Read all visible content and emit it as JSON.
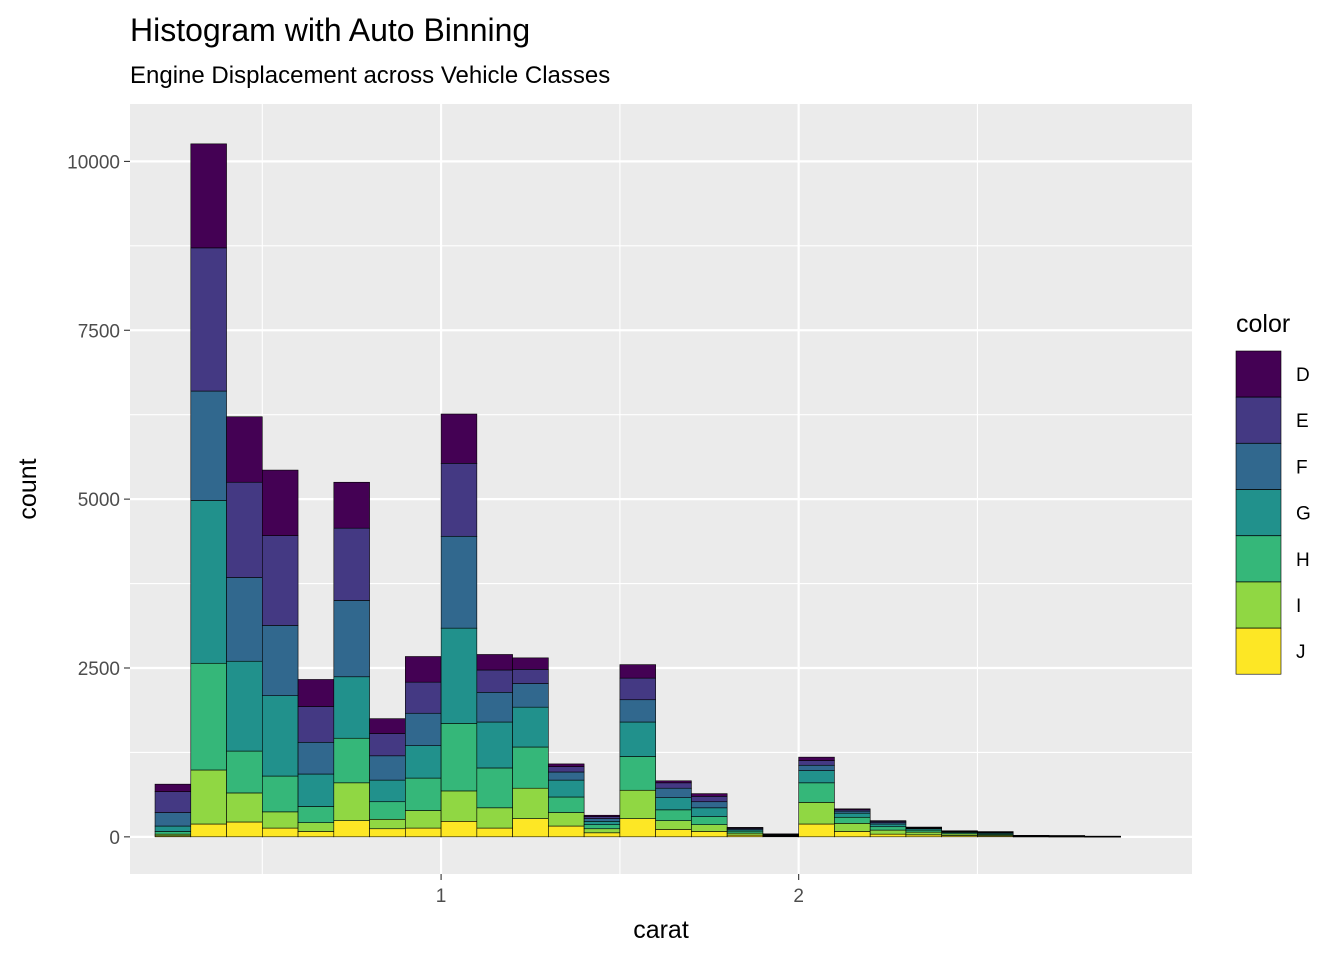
{
  "chart_data": {
    "type": "bar",
    "stacked": true,
    "title": "Histogram with Auto Binning",
    "subtitle": "Engine Displacement across Vehicle Classes",
    "xlabel": "carat",
    "ylabel": "count",
    "xlim": [
      0.13,
      3.1
    ],
    "ylim": [
      -550,
      10850
    ],
    "x_ticks": [
      {
        "value": 1,
        "label": "1"
      },
      {
        "value": 2,
        "label": "2"
      }
    ],
    "y_ticks": [
      {
        "value": 0,
        "label": "0"
      },
      {
        "value": 2500,
        "label": "2500"
      },
      {
        "value": 5000,
        "label": "5000"
      },
      {
        "value": 7500,
        "label": "7500"
      },
      {
        "value": 10000,
        "label": "10000"
      }
    ],
    "grid": true,
    "background": "#ebebeb",
    "legend": {
      "title": "color",
      "placement": "right"
    },
    "bins": {
      "x": [
        0.25,
        0.35,
        0.45,
        0.55,
        0.65,
        0.75,
        0.85,
        0.95,
        1.05,
        1.15,
        1.25,
        1.35,
        1.45,
        1.55,
        1.65,
        1.75,
        1.85,
        1.95,
        2.05,
        2.15,
        2.25,
        2.35,
        2.45,
        2.55,
        2.65,
        2.75,
        2.85
      ],
      "width": 0.1
    },
    "series": [
      {
        "name": "J",
        "color": "#fde725",
        "values": [
          15,
          190,
          220,
          130,
          80,
          240,
          120,
          130,
          230,
          130,
          270,
          160,
          60,
          270,
          110,
          80,
          25,
          8,
          190,
          80,
          40,
          30,
          20,
          15,
          5,
          4,
          2
        ]
      },
      {
        "name": "I",
        "color": "#90d743",
        "values": [
          25,
          800,
          430,
          240,
          130,
          560,
          140,
          260,
          450,
          300,
          450,
          200,
          60,
          420,
          130,
          100,
          30,
          8,
          320,
          120,
          60,
          40,
          25,
          15,
          5,
          4,
          2
        ]
      },
      {
        "name": "H",
        "color": "#35b779",
        "values": [
          40,
          1580,
          620,
          530,
          240,
          660,
          260,
          480,
          1000,
          590,
          610,
          230,
          60,
          500,
          160,
          120,
          30,
          8,
          290,
          90,
          50,
          30,
          20,
          15,
          5,
          3,
          2
        ]
      },
      {
        "name": "G",
        "color": "#21918c",
        "values": [
          80,
          2410,
          1330,
          1190,
          480,
          910,
          320,
          480,
          1410,
          680,
          590,
          250,
          50,
          510,
          180,
          130,
          20,
          8,
          180,
          60,
          40,
          20,
          10,
          15,
          3,
          3,
          1
        ]
      },
      {
        "name": "F",
        "color": "#31688e",
        "values": [
          200,
          1620,
          1240,
          1040,
          470,
          1130,
          360,
          480,
          1360,
          440,
          350,
          120,
          40,
          330,
          140,
          90,
          15,
          5,
          80,
          30,
          20,
          10,
          5,
          10,
          2,
          2,
          1
        ]
      },
      {
        "name": "E",
        "color": "#443983",
        "values": [
          310,
          2120,
          1410,
          1330,
          530,
          1070,
          330,
          460,
          1080,
          330,
          210,
          80,
          30,
          320,
          80,
          80,
          15,
          4,
          70,
          20,
          20,
          10,
          5,
          5,
          1,
          2,
          1
        ]
      },
      {
        "name": "D",
        "color": "#440154",
        "values": [
          110,
          1540,
          970,
          970,
          400,
          680,
          220,
          380,
          730,
          230,
          170,
          40,
          20,
          200,
          30,
          40,
          5,
          3,
          50,
          15,
          10,
          5,
          5,
          3,
          1,
          1,
          1
        ]
      }
    ]
  }
}
